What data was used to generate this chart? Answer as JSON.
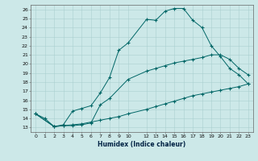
{
  "xlabel": "Humidex (Indice chaleur)",
  "bg_color": "#cce8e8",
  "grid_color": "#aacfcf",
  "line_color": "#006666",
  "xlim": [
    -0.5,
    23.5
  ],
  "ylim": [
    12.5,
    26.5
  ],
  "xticks": [
    0,
    1,
    2,
    3,
    4,
    5,
    6,
    7,
    8,
    9,
    10,
    12,
    13,
    14,
    15,
    16,
    17,
    18,
    19,
    20,
    21,
    22,
    23
  ],
  "yticks": [
    13,
    14,
    15,
    16,
    17,
    18,
    19,
    20,
    21,
    22,
    23,
    24,
    25,
    26
  ],
  "line1_x": [
    0,
    1,
    2,
    3,
    4,
    5,
    6,
    7,
    8,
    9,
    10,
    12,
    13,
    14,
    15,
    16,
    17,
    18,
    19,
    20,
    21,
    22,
    23
  ],
  "line1_y": [
    14.5,
    14.0,
    13.1,
    13.3,
    14.8,
    15.1,
    15.4,
    16.8,
    18.5,
    21.5,
    22.3,
    24.9,
    24.8,
    25.8,
    26.1,
    26.1,
    24.8,
    24.0,
    22.0,
    20.8,
    19.5,
    18.8,
    17.8
  ],
  "line2_x": [
    0,
    2,
    3,
    4,
    5,
    6,
    7,
    8,
    10,
    12,
    13,
    14,
    15,
    16,
    17,
    18,
    19,
    20,
    21,
    22,
    23
  ],
  "line2_y": [
    14.5,
    13.1,
    13.2,
    13.2,
    13.3,
    13.5,
    15.5,
    16.2,
    18.3,
    19.2,
    19.5,
    19.8,
    20.1,
    20.3,
    20.5,
    20.7,
    21.0,
    21.0,
    20.5,
    19.5,
    18.8
  ],
  "line3_x": [
    0,
    2,
    3,
    4,
    5,
    6,
    7,
    8,
    9,
    10,
    12,
    13,
    14,
    15,
    16,
    17,
    18,
    19,
    20,
    21,
    22,
    23
  ],
  "line3_y": [
    14.5,
    13.1,
    13.2,
    13.3,
    13.4,
    13.6,
    13.8,
    14.0,
    14.2,
    14.5,
    15.0,
    15.3,
    15.6,
    15.9,
    16.2,
    16.5,
    16.7,
    16.9,
    17.1,
    17.3,
    17.5,
    17.8
  ]
}
